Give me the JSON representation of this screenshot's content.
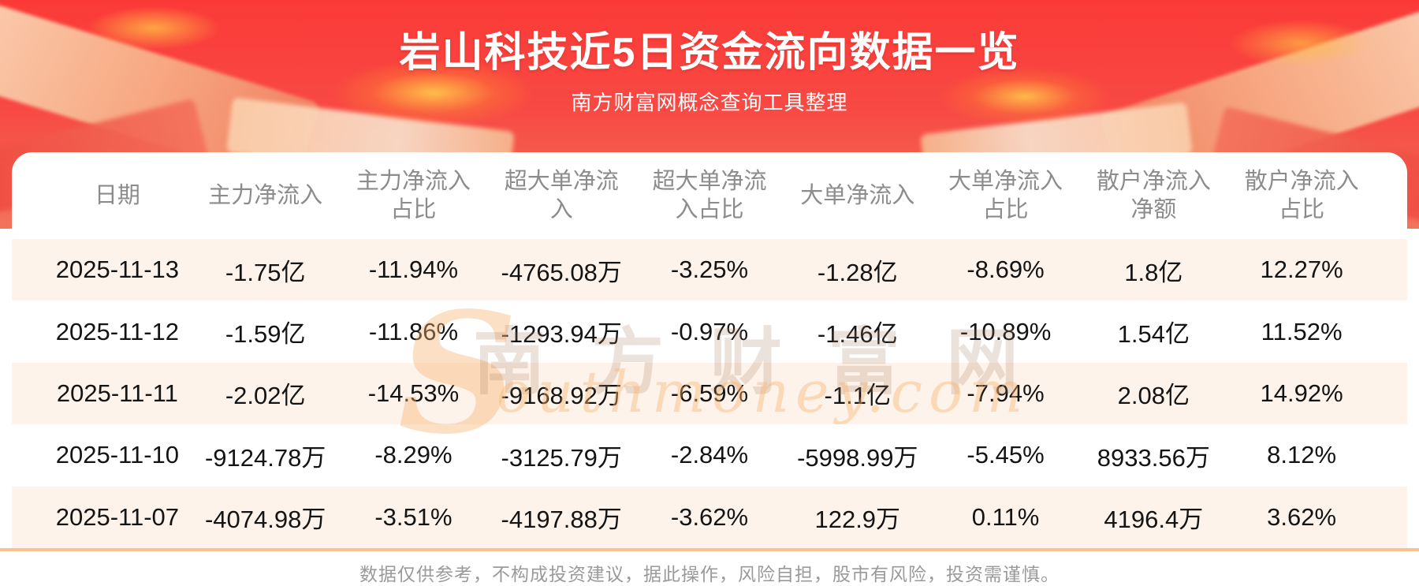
{
  "header": {
    "title": "岩山科技近5日资金流向数据一览",
    "subtitle": "南方财富网概念查询工具整理"
  },
  "chart_data": {
    "type": "table",
    "title": "岩山科技近5日资金流向数据一览",
    "subtitle": "南方财富网概念查询工具整理",
    "columns": [
      "日期",
      "主力净流入",
      "主力净流入\n占比",
      "超大单净流\n入",
      "超大单净流\n入占比",
      "大单净流入",
      "大单净流入\n占比",
      "散户净流入\n净额",
      "散户净流入\n占比"
    ],
    "rows": [
      [
        "2025-11-13",
        "-1.75亿",
        "-11.94%",
        "-4765.08万",
        "-3.25%",
        "-1.28亿",
        "-8.69%",
        "1.8亿",
        "12.27%"
      ],
      [
        "2025-11-12",
        "-1.59亿",
        "-11.86%",
        "-1293.94万",
        "-0.97%",
        "-1.46亿",
        "-10.89%",
        "1.54亿",
        "11.52%"
      ],
      [
        "2025-11-11",
        "-2.02亿",
        "-14.53%",
        "-9168.92万",
        "-6.59%",
        "-1.1亿",
        "-7.94%",
        "2.08亿",
        "14.92%"
      ],
      [
        "2025-11-10",
        "-9124.78万",
        "-8.29%",
        "-3125.79万",
        "-2.84%",
        "-5998.99万",
        "-5.45%",
        "8933.56万",
        "8.12%"
      ],
      [
        "2025-11-07",
        "-4074.98万",
        "-3.51%",
        "-4197.88万",
        "-3.62%",
        "122.9万",
        "0.11%",
        "4196.4万",
        "3.62%"
      ]
    ]
  },
  "watermark": {
    "initial": "S",
    "cn": "南方财富网",
    "en": "outhmoney.com"
  },
  "footer": {
    "disclaimer": "数据仅供参考，不构成投资建议，据此操作，风险自担，股市有风险，投资需谨慎。"
  },
  "colors": {
    "band_red": "#fb3a37",
    "stripe_cream": "#fdf3ea",
    "divider_orange": "#f6c38f",
    "header_text_gray": "#8c8c8c",
    "cell_text": "#141414",
    "title_white": "#ffffff"
  }
}
